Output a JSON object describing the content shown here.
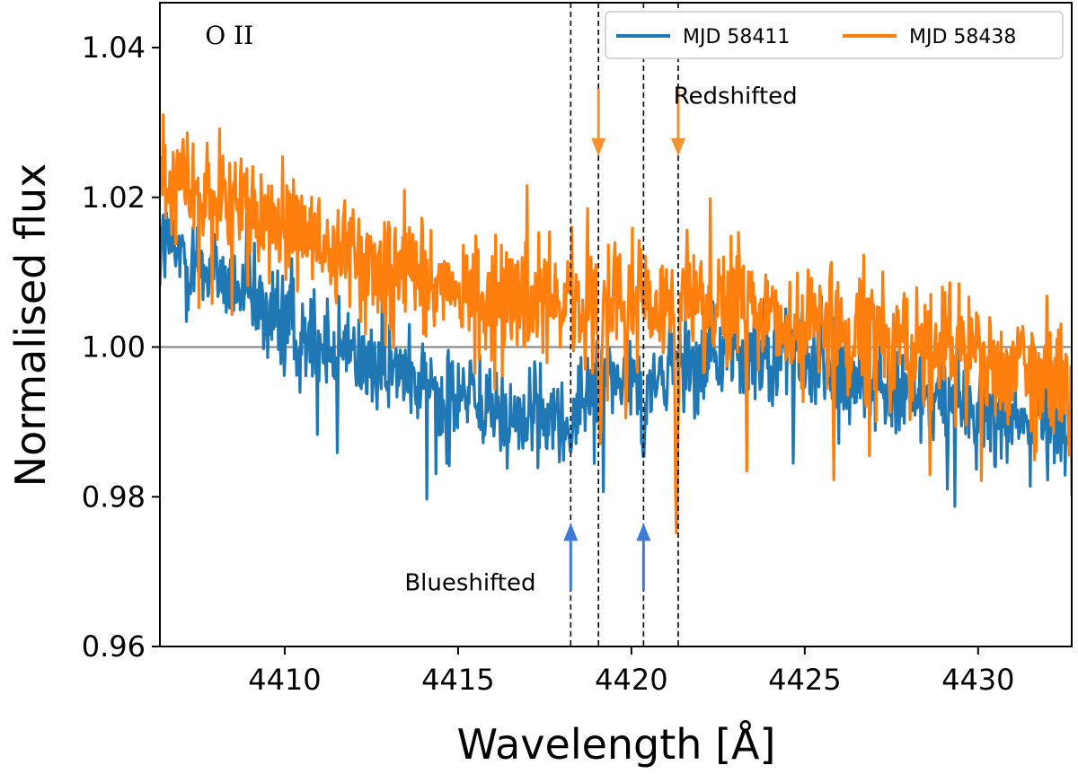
{
  "chart_data": {
    "type": "line",
    "title": "",
    "xlabel": "Wavelength [Å]",
    "ylabel": "Normalised flux",
    "xlim": [
      4406.4,
      4432.7
    ],
    "ylim": [
      0.96,
      1.046
    ],
    "xticks": [
      4410,
      4415,
      4420,
      4425,
      4430
    ],
    "xtick_labels": [
      "4410",
      "4415",
      "4420",
      "4425",
      "4430"
    ],
    "yticks": [
      0.96,
      0.98,
      1.0,
      1.02,
      1.04
    ],
    "ytick_labels": [
      "0.96",
      "0.98",
      "1.00",
      "1.02",
      "1.04"
    ],
    "legend_position": "top-right",
    "reference_line": {
      "y": 1.0,
      "color": "#808080"
    },
    "vertical_lines": [
      4418.25,
      4419.05,
      4420.35,
      4421.35
    ],
    "series": [
      {
        "name": "MJD 58411",
        "label": "MJD 58411",
        "color": "#1f77b4",
        "trend": [
          [
            4406.5,
            1.014
          ],
          [
            4408,
            1.01
          ],
          [
            4410,
            1.003
          ],
          [
            4412,
            0.999
          ],
          [
            4414,
            0.995
          ],
          [
            4416,
            0.992
          ],
          [
            4417,
            0.99
          ],
          [
            4418.2,
            0.991
          ],
          [
            4419,
            0.996
          ],
          [
            4420.3,
            0.995
          ],
          [
            4421.5,
            0.998
          ],
          [
            4423,
            1.0
          ],
          [
            4425,
            0.998
          ],
          [
            4427,
            0.995
          ],
          [
            4429,
            0.993
          ],
          [
            4430.5,
            0.991
          ],
          [
            4432.7,
            0.99
          ]
        ],
        "noise_sigma": 0.0045,
        "absorption_dips": [
          [
            4418.25,
            0.986
          ],
          [
            4420.35,
            0.985
          ]
        ]
      },
      {
        "name": "MJD 58438",
        "label": "MJD 58438",
        "color": "#ff7f0e",
        "trend": [
          [
            4406.5,
            1.024
          ],
          [
            4408,
            1.02
          ],
          [
            4410,
            1.016
          ],
          [
            4412,
            1.012
          ],
          [
            4414,
            1.009
          ],
          [
            4416,
            1.007
          ],
          [
            4417.5,
            1.006
          ],
          [
            4419,
            1.006
          ],
          [
            4421,
            1.006
          ],
          [
            4423,
            1.005
          ],
          [
            4425,
            1.004
          ],
          [
            4427,
            1.001
          ],
          [
            4429,
            0.999
          ],
          [
            4430.5,
            0.997
          ],
          [
            4432.7,
            0.995
          ]
        ],
        "noise_sigma": 0.0055,
        "absorption_dips": [
          [
            4419.1,
            0.987
          ],
          [
            4421.3,
            0.975
          ]
        ]
      }
    ],
    "arrows": [
      {
        "x": 4419.05,
        "direction": "down",
        "y_tail": 1.0345,
        "y_head": 1.0255,
        "color": "#f5922e"
      },
      {
        "x": 4421.35,
        "direction": "down",
        "y_tail": 1.0345,
        "y_head": 1.0255,
        "color": "#f5922e"
      },
      {
        "x": 4418.25,
        "direction": "up",
        "y_tail": 0.9675,
        "y_head": 0.9765,
        "color": "#3f7ad6"
      },
      {
        "x": 4420.35,
        "direction": "up",
        "y_tail": 0.9675,
        "y_head": 0.9765,
        "color": "#3f7ad6"
      }
    ],
    "annotations": [
      {
        "text": "O II",
        "role": "species",
        "x": 4408.4,
        "y": 1.0405
      },
      {
        "text": "Redshifted",
        "role": "redshift",
        "x": 4423.0,
        "y": 1.0325
      },
      {
        "text": "Blueshifted",
        "role": "blueshift",
        "x": 4415.35,
        "y": 0.9675
      }
    ]
  }
}
